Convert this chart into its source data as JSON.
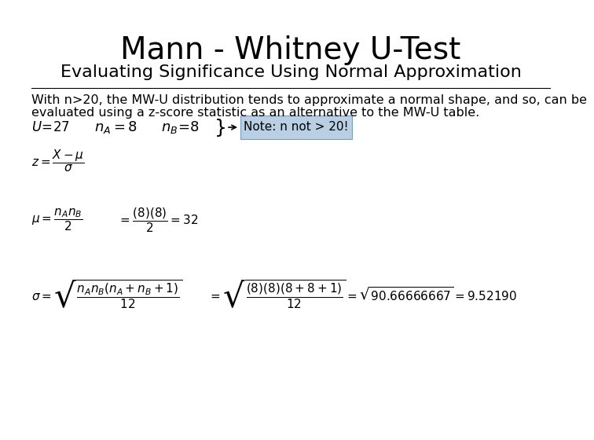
{
  "title": "Mann - Whitney U-Test",
  "subtitle": "Evaluating Significance Using Normal Approximation",
  "body_line1": "With n>20, the MW-U distribution tends to approximate a normal shape, and so, can be",
  "body_line2": "evaluated using a z-score statistic as an alternative to the MW-U table.",
  "note_box_text": "Note: n not > 20!",
  "note_box_color": "#b8cfe4",
  "background_color": "#ffffff",
  "title_fontsize": 28,
  "subtitle_fontsize": 16,
  "body_fontsize": 11.5,
  "small_formula_fontsize": 11,
  "inline_fontsize": 13
}
